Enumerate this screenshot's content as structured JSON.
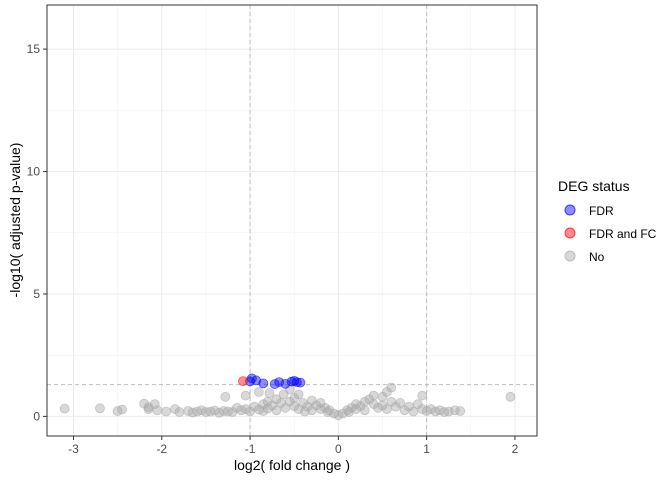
{
  "chart_data": {
    "type": "scatter",
    "title": "",
    "xlabel": "log2( fold change )",
    "ylabel": "-log10( adjusted p-value)",
    "xlim": [
      -3.3,
      2.25
    ],
    "ylim": [
      -0.8,
      16.8
    ],
    "x_ticks": [
      -3,
      -2,
      -1,
      0,
      1,
      2
    ],
    "y_ticks": [
      0,
      5,
      10,
      15
    ],
    "x_tick_labels": [
      "-3",
      "-2",
      "-1",
      "0",
      "1",
      "2"
    ],
    "y_tick_labels": [
      "0",
      "5",
      "10",
      "15"
    ],
    "grid": true,
    "thresholds": {
      "x": [
        -1,
        1
      ],
      "y": 1.3
    },
    "legend": {
      "title": "DEG status",
      "position": "right",
      "entries": [
        {
          "label": "FDR",
          "color": "#0000ff"
        },
        {
          "label": "FDR and FC",
          "color": "#ff0000"
        },
        {
          "label": "No",
          "color": "#a9a9a9"
        }
      ]
    },
    "series": [
      {
        "name": "FDR",
        "color": "#0000ff",
        "points": [
          [
            -0.98,
            1.55
          ],
          [
            -1.0,
            1.43
          ],
          [
            -0.93,
            1.47
          ],
          [
            -0.85,
            1.35
          ],
          [
            -0.72,
            1.32
          ],
          [
            -0.67,
            1.4
          ],
          [
            -0.6,
            1.33
          ],
          [
            -0.53,
            1.42
          ],
          [
            -0.5,
            1.45
          ],
          [
            -0.47,
            1.4
          ],
          [
            -0.43,
            1.38
          ]
        ]
      },
      {
        "name": "FDR and FC",
        "color": "#ff0000",
        "points": [
          [
            -1.08,
            1.44
          ]
        ]
      },
      {
        "name": "No",
        "color": "#a9a9a9",
        "points": [
          [
            -3.1,
            0.32
          ],
          [
            -2.7,
            0.33
          ],
          [
            -2.5,
            0.22
          ],
          [
            -2.45,
            0.28
          ],
          [
            -2.2,
            0.52
          ],
          [
            -2.15,
            0.38
          ],
          [
            -2.15,
            0.3
          ],
          [
            -2.08,
            0.5
          ],
          [
            -2.05,
            0.25
          ],
          [
            -1.95,
            0.2
          ],
          [
            -1.85,
            0.3
          ],
          [
            -1.8,
            0.18
          ],
          [
            -1.7,
            0.22
          ],
          [
            -1.65,
            0.16
          ],
          [
            -1.6,
            0.2
          ],
          [
            -1.55,
            0.25
          ],
          [
            -1.5,
            0.18
          ],
          [
            -1.45,
            0.2
          ],
          [
            -1.4,
            0.24
          ],
          [
            -1.35,
            0.15
          ],
          [
            -1.3,
            0.22
          ],
          [
            -1.25,
            0.2
          ],
          [
            -1.28,
            0.8
          ],
          [
            -1.2,
            0.18
          ],
          [
            -1.15,
            0.35
          ],
          [
            -1.1,
            0.25
          ],
          [
            -1.05,
            0.3
          ],
          [
            -1.05,
            0.85
          ],
          [
            -1.0,
            0.2
          ],
          [
            -0.95,
            0.4
          ],
          [
            -0.9,
            0.28
          ],
          [
            -0.9,
            1.0
          ],
          [
            -0.85,
            0.5
          ],
          [
            -0.85,
            0.22
          ],
          [
            -0.8,
            0.6
          ],
          [
            -0.8,
            0.32
          ],
          [
            -0.78,
            0.95
          ],
          [
            -0.75,
            0.45
          ],
          [
            -0.7,
            0.7
          ],
          [
            -0.7,
            0.25
          ],
          [
            -0.65,
            0.55
          ],
          [
            -0.62,
            0.9
          ],
          [
            -0.6,
            0.35
          ],
          [
            -0.55,
            0.6
          ],
          [
            -0.55,
            1.1
          ],
          [
            -0.5,
            0.42
          ],
          [
            -0.5,
            0.75
          ],
          [
            -0.45,
            0.3
          ],
          [
            -0.45,
            0.9
          ],
          [
            -0.4,
            0.55
          ],
          [
            -0.38,
            0.2
          ],
          [
            -0.35,
            0.4
          ],
          [
            -0.3,
            0.65
          ],
          [
            -0.3,
            0.25
          ],
          [
            -0.25,
            0.45
          ],
          [
            -0.2,
            0.3
          ],
          [
            -0.2,
            0.55
          ],
          [
            -0.15,
            0.35
          ],
          [
            -0.12,
            0.18
          ],
          [
            -0.1,
            0.25
          ],
          [
            -0.05,
            0.12
          ],
          [
            0.0,
            0.05
          ],
          [
            0.05,
            0.12
          ],
          [
            0.1,
            0.25
          ],
          [
            0.12,
            0.18
          ],
          [
            0.15,
            0.35
          ],
          [
            0.2,
            0.3
          ],
          [
            0.2,
            0.5
          ],
          [
            0.25,
            0.42
          ],
          [
            0.3,
            0.6
          ],
          [
            0.3,
            0.25
          ],
          [
            0.35,
            0.7
          ],
          [
            0.4,
            0.5
          ],
          [
            0.4,
            0.85
          ],
          [
            0.45,
            0.35
          ],
          [
            0.5,
            0.8
          ],
          [
            0.5,
            0.45
          ],
          [
            0.55,
            1.0
          ],
          [
            0.55,
            0.3
          ],
          [
            0.6,
            0.6
          ],
          [
            0.6,
            1.18
          ],
          [
            0.65,
            0.4
          ],
          [
            0.7,
            0.55
          ],
          [
            0.75,
            0.25
          ],
          [
            0.8,
            0.4
          ],
          [
            0.85,
            0.2
          ],
          [
            0.9,
            0.5
          ],
          [
            0.95,
            0.3
          ],
          [
            0.95,
            0.85
          ],
          [
            1.0,
            0.22
          ],
          [
            1.05,
            0.3
          ],
          [
            1.1,
            0.2
          ],
          [
            1.15,
            0.25
          ],
          [
            1.2,
            0.18
          ],
          [
            1.25,
            0.2
          ],
          [
            1.32,
            0.25
          ],
          [
            1.38,
            0.22
          ],
          [
            1.95,
            0.8
          ]
        ]
      }
    ]
  }
}
